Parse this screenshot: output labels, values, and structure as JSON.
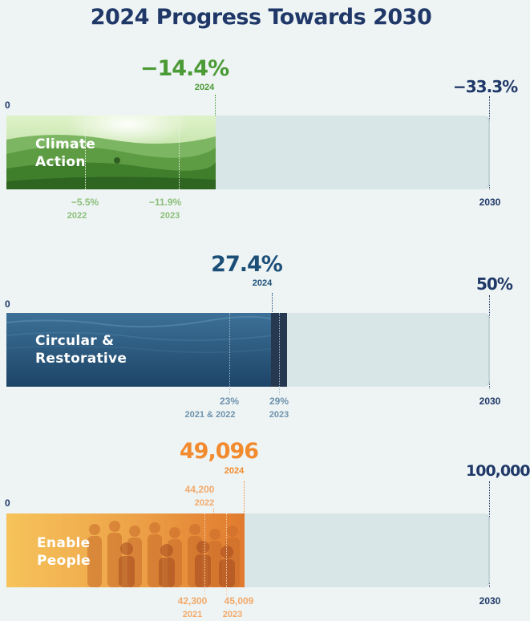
{
  "title": "2024 Progress Towards 2030",
  "colors": {
    "navy": "#1f3868",
    "climate": "#4a9a35",
    "climate_light": "#8cbf7a",
    "circular": "#1c4f78",
    "circular_light": "#6f92ad",
    "people": "#f28a2e",
    "people_light": "#f2a96a",
    "track": "#d9e6e7"
  },
  "chart_data": [
    {
      "type": "bar",
      "category": "Climate Action",
      "label_line1": "Climate",
      "label_line2": "Action",
      "start_label": "0",
      "current": {
        "value_label": "−14.4%",
        "year": "2024",
        "value": -14.4
      },
      "target": {
        "value_label": "−33.3%",
        "year": "2030",
        "value": -33.3
      },
      "milestones": [
        {
          "value_label": "−5.5%",
          "year": "2022",
          "value": -5.5
        },
        {
          "value_label": "−11.9%",
          "year": "2023",
          "value": -11.9
        }
      ]
    },
    {
      "type": "bar",
      "category": "Circular & Restorative",
      "label_line1": "Circular &",
      "label_line2": "Restorative",
      "start_label": "0",
      "current": {
        "value_label": "27.4%",
        "year": "2024",
        "value": 27.4
      },
      "target": {
        "value_label": "50%",
        "year": "2030",
        "value": 50
      },
      "milestones": [
        {
          "value_label": "23%",
          "year": "2021 & 2022",
          "value": 23
        },
        {
          "value_label": "29%",
          "year": "2023",
          "value": 29
        }
      ]
    },
    {
      "type": "bar",
      "category": "Enable People",
      "label_line1": "Enable",
      "label_line2": "People",
      "start_label": "0",
      "current": {
        "value_label": "49,096",
        "year": "2024",
        "value": 49096
      },
      "target": {
        "value_label": "100,000",
        "year": "2030",
        "value": 100000
      },
      "milestones_above": [
        {
          "value_label": "44,200",
          "year": "2022",
          "value": 44200
        }
      ],
      "milestones": [
        {
          "value_label": "42,300",
          "year": "2021",
          "value": 42300
        },
        {
          "value_label": "45,009",
          "year": "2023",
          "value": 45009
        }
      ]
    }
  ]
}
